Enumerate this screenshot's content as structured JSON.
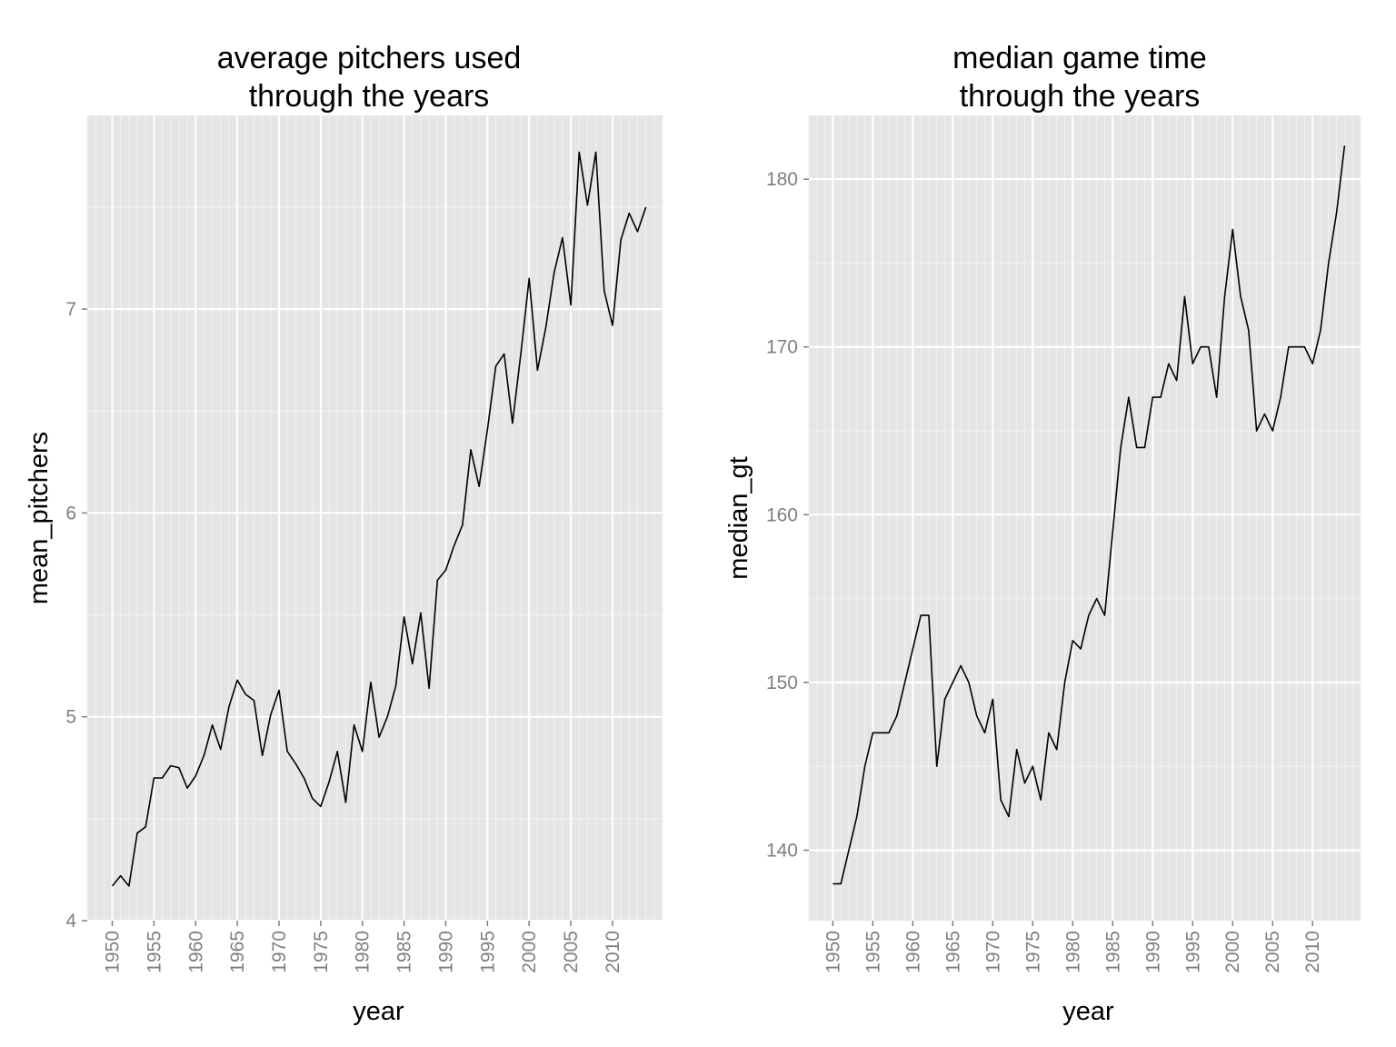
{
  "chart_data": [
    {
      "type": "line",
      "title": "average pitchers used\nthrough the years",
      "xlabel": "year",
      "ylabel": "mean_pitchers",
      "xlim": [
        1947,
        2016
      ],
      "ylim": [
        4,
        7.95
      ],
      "x_ticks": [
        1950,
        1955,
        1960,
        1965,
        1970,
        1975,
        1980,
        1985,
        1990,
        1995,
        2000,
        2005,
        2010
      ],
      "y_ticks": [
        4,
        5,
        6,
        7
      ],
      "grid": true,
      "x": [
        1950,
        1951,
        1952,
        1953,
        1954,
        1955,
        1956,
        1957,
        1958,
        1959,
        1960,
        1961,
        1962,
        1963,
        1964,
        1965,
        1966,
        1967,
        1968,
        1969,
        1970,
        1971,
        1972,
        1973,
        1974,
        1975,
        1976,
        1977,
        1978,
        1979,
        1980,
        1981,
        1982,
        1983,
        1984,
        1985,
        1986,
        1987,
        1988,
        1989,
        1990,
        1991,
        1992,
        1993,
        1994,
        1995,
        1996,
        1997,
        1998,
        1999,
        2000,
        2001,
        2002,
        2003,
        2004,
        2005,
        2006,
        2007,
        2008,
        2009,
        2010,
        2011,
        2012,
        2013,
        2014
      ],
      "y": [
        4.17,
        4.22,
        4.17,
        4.43,
        4.46,
        4.7,
        4.7,
        4.76,
        4.75,
        4.65,
        4.71,
        4.81,
        4.96,
        4.84,
        5.05,
        5.18,
        5.11,
        5.08,
        4.81,
        5.01,
        5.13,
        4.83,
        4.77,
        4.7,
        4.6,
        4.56,
        4.68,
        4.83,
        4.58,
        4.96,
        4.83,
        5.17,
        4.9,
        5.0,
        5.15,
        5.49,
        5.26,
        5.51,
        5.14,
        5.67,
        5.72,
        5.84,
        5.94,
        6.31,
        6.13,
        6.41,
        6.72,
        6.78,
        6.44,
        6.78,
        7.15,
        6.7,
        6.91,
        7.18,
        7.35,
        7.02,
        7.77,
        7.51,
        7.77,
        7.09,
        6.92,
        7.34,
        7.47,
        7.38,
        7.5
      ]
    },
    {
      "type": "line",
      "title": "median game time\nthrough the years",
      "xlabel": "year",
      "ylabel": "median_gt",
      "xlim": [
        1947,
        2016
      ],
      "ylim": [
        135.8,
        183.8
      ],
      "x_ticks": [
        1950,
        1955,
        1960,
        1965,
        1970,
        1975,
        1980,
        1985,
        1990,
        1995,
        2000,
        2005,
        2010
      ],
      "y_ticks": [
        140,
        150,
        160,
        170,
        180
      ],
      "grid": true,
      "x": [
        1950,
        1951,
        1952,
        1953,
        1954,
        1955,
        1956,
        1957,
        1958,
        1959,
        1960,
        1961,
        1962,
        1963,
        1964,
        1965,
        1966,
        1967,
        1968,
        1969,
        1970,
        1971,
        1972,
        1973,
        1974,
        1975,
        1976,
        1977,
        1978,
        1979,
        1980,
        1981,
        1982,
        1983,
        1984,
        1985,
        1986,
        1987,
        1988,
        1989,
        1990,
        1991,
        1992,
        1993,
        1994,
        1995,
        1996,
        1997,
        1998,
        1999,
        2000,
        2001,
        2002,
        2003,
        2004,
        2005,
        2006,
        2007,
        2008,
        2009,
        2010,
        2011,
        2012,
        2013,
        2014
      ],
      "y": [
        138,
        138,
        140,
        142,
        145,
        147,
        147,
        147,
        148,
        150,
        152,
        154,
        154,
        145,
        149,
        150,
        151,
        150,
        148,
        147,
        149,
        143,
        142,
        146,
        144,
        145,
        143,
        147,
        146,
        150,
        152.5,
        152,
        154,
        155,
        154,
        159,
        164,
        167,
        164,
        164,
        167,
        167,
        169,
        168,
        173,
        169,
        170,
        170,
        167,
        173,
        177,
        173,
        171,
        165,
        166,
        165,
        167,
        170,
        170,
        170,
        169,
        171,
        175,
        178,
        182
      ]
    }
  ]
}
